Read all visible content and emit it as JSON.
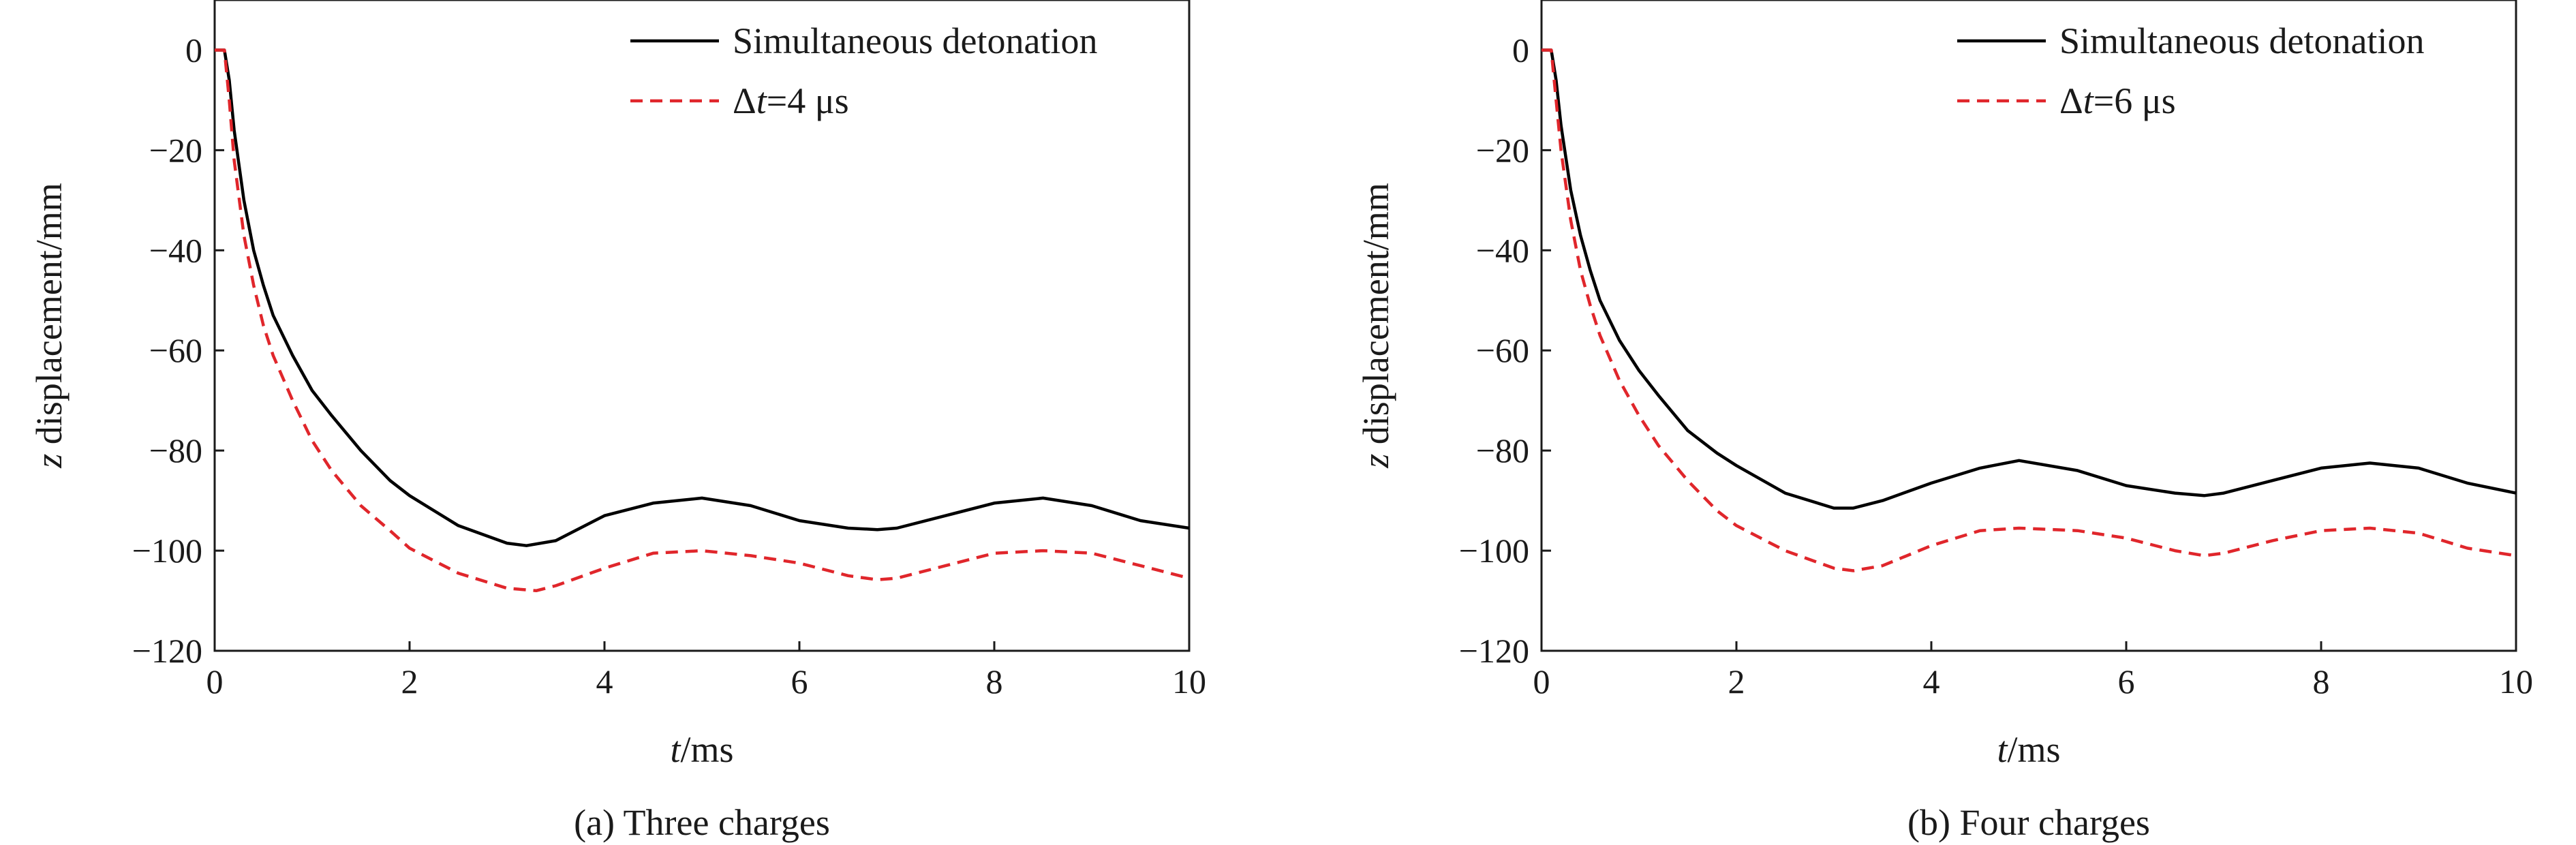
{
  "chart_data": [
    {
      "type": "line",
      "caption": "(a) Three charges",
      "xlabel_italic": "t",
      "xlabel_rest": "/ms",
      "ylabel_italic": "z",
      "ylabel_rest": " displacement/mm",
      "xlim": [
        0,
        10
      ],
      "ylim": [
        -120,
        10
      ],
      "xticks": [
        0,
        2,
        4,
        6,
        8,
        10
      ],
      "yticks": [
        0,
        -20,
        -40,
        -60,
        -80,
        -100,
        -120
      ],
      "xtick_labels": [
        "0",
        "2",
        "4",
        "6",
        "8",
        "10"
      ],
      "ytick_labels": [
        "0",
        "−20",
        "−40",
        "−60",
        "−80",
        "−100",
        "−120"
      ],
      "grid": false,
      "legend_position": "top-right",
      "series": [
        {
          "name": "Simultaneous detonation",
          "name_parts": [
            "Simultaneous detonation"
          ],
          "color": "#000000",
          "style": "solid",
          "x": [
            0,
            0.1,
            0.15,
            0.2,
            0.3,
            0.4,
            0.5,
            0.6,
            0.8,
            1.0,
            1.2,
            1.5,
            1.8,
            2.0,
            2.5,
            3.0,
            3.2,
            3.5,
            4.0,
            4.5,
            5.0,
            5.5,
            6.0,
            6.5,
            6.8,
            7.0,
            7.5,
            8.0,
            8.5,
            9.0,
            9.5,
            10.0
          ],
          "y": [
            0,
            0,
            -6,
            -16,
            -30,
            -40,
            -47,
            -53,
            -61,
            -68,
            -73,
            -80,
            -86,
            -89,
            -95,
            -98.5,
            -99,
            -98,
            -93,
            -90.5,
            -89.5,
            -91,
            -94,
            -95.5,
            -95.8,
            -95.5,
            -93,
            -90.5,
            -89.5,
            -91,
            -94,
            -95.5
          ]
        },
        {
          "name": "Δt=4 μs",
          "name_parts": [
            "Δ",
            "t",
            "=4 μs"
          ],
          "color": "#e0262b",
          "style": "dashed",
          "x": [
            0,
            0.1,
            0.15,
            0.2,
            0.3,
            0.4,
            0.5,
            0.6,
            0.8,
            1.0,
            1.2,
            1.5,
            1.8,
            2.0,
            2.5,
            3.0,
            3.3,
            3.5,
            4.0,
            4.5,
            5.0,
            5.5,
            6.0,
            6.5,
            6.8,
            7.0,
            7.5,
            8.0,
            8.5,
            9.0,
            9.5,
            10.0
          ],
          "y": [
            0,
            0,
            -10,
            -22,
            -37,
            -47,
            -55,
            -61,
            -70,
            -78,
            -84,
            -91,
            -96,
            -99.5,
            -104.5,
            -107.5,
            -108,
            -107,
            -103.5,
            -100.5,
            -100,
            -101,
            -102.5,
            -105,
            -105.8,
            -105.5,
            -103,
            -100.5,
            -100,
            -100.5,
            -103,
            -105.5
          ]
        }
      ]
    },
    {
      "type": "line",
      "caption": "(b) Four charges",
      "xlabel_italic": "t",
      "xlabel_rest": "/ms",
      "ylabel_italic": "z",
      "ylabel_rest": " displacement/mm",
      "xlim": [
        0,
        10
      ],
      "ylim": [
        -120,
        10
      ],
      "xticks": [
        0,
        2,
        4,
        6,
        8,
        10
      ],
      "yticks": [
        0,
        -20,
        -40,
        -60,
        -80,
        -100,
        -120
      ],
      "xtick_labels": [
        "0",
        "2",
        "4",
        "6",
        "8",
        "10"
      ],
      "ytick_labels": [
        "0",
        "−20",
        "−40",
        "−60",
        "−80",
        "−100",
        "−120"
      ],
      "grid": false,
      "legend_position": "top-right",
      "series": [
        {
          "name": "Simultaneous detonation",
          "name_parts": [
            "Simultaneous detonation"
          ],
          "color": "#000000",
          "style": "solid",
          "x": [
            0,
            0.1,
            0.15,
            0.2,
            0.3,
            0.4,
            0.5,
            0.6,
            0.8,
            1.0,
            1.2,
            1.5,
            1.8,
            2.0,
            2.5,
            3.0,
            3.2,
            3.5,
            4.0,
            4.5,
            4.9,
            5.5,
            6.0,
            6.5,
            6.8,
            7.0,
            7.5,
            8.0,
            8.5,
            9.0,
            9.5,
            10.0
          ],
          "y": [
            0,
            0,
            -6,
            -15,
            -28,
            -37,
            -44,
            -50,
            -58,
            -64,
            -69,
            -76,
            -80.5,
            -83,
            -88.5,
            -91.5,
            -91.5,
            -90,
            -86.5,
            -83.5,
            -82,
            -84,
            -87,
            -88.5,
            -89,
            -88.5,
            -86,
            -83.5,
            -82.5,
            -83.5,
            -86.5,
            -88.5
          ]
        },
        {
          "name": "Δt=6 μs",
          "name_parts": [
            "Δ",
            "t",
            "=6 μs"
          ],
          "color": "#e0262b",
          "style": "dashed",
          "x": [
            0,
            0.1,
            0.15,
            0.2,
            0.3,
            0.4,
            0.5,
            0.6,
            0.8,
            1.0,
            1.2,
            1.5,
            1.8,
            2.0,
            2.5,
            3.0,
            3.2,
            3.5,
            4.0,
            4.5,
            4.9,
            5.5,
            6.0,
            6.5,
            6.8,
            7.0,
            7.5,
            8.0,
            8.5,
            9.0,
            9.5,
            10.0
          ],
          "y": [
            0,
            0,
            -10,
            -20,
            -34,
            -44,
            -51,
            -57,
            -66,
            -73,
            -79,
            -86,
            -92,
            -95,
            -100,
            -103.5,
            -104,
            -103,
            -99,
            -96,
            -95.5,
            -96,
            -97.5,
            -100,
            -101,
            -100.5,
            -98,
            -96,
            -95.5,
            -96.5,
            -99.5,
            -101
          ]
        }
      ]
    }
  ]
}
